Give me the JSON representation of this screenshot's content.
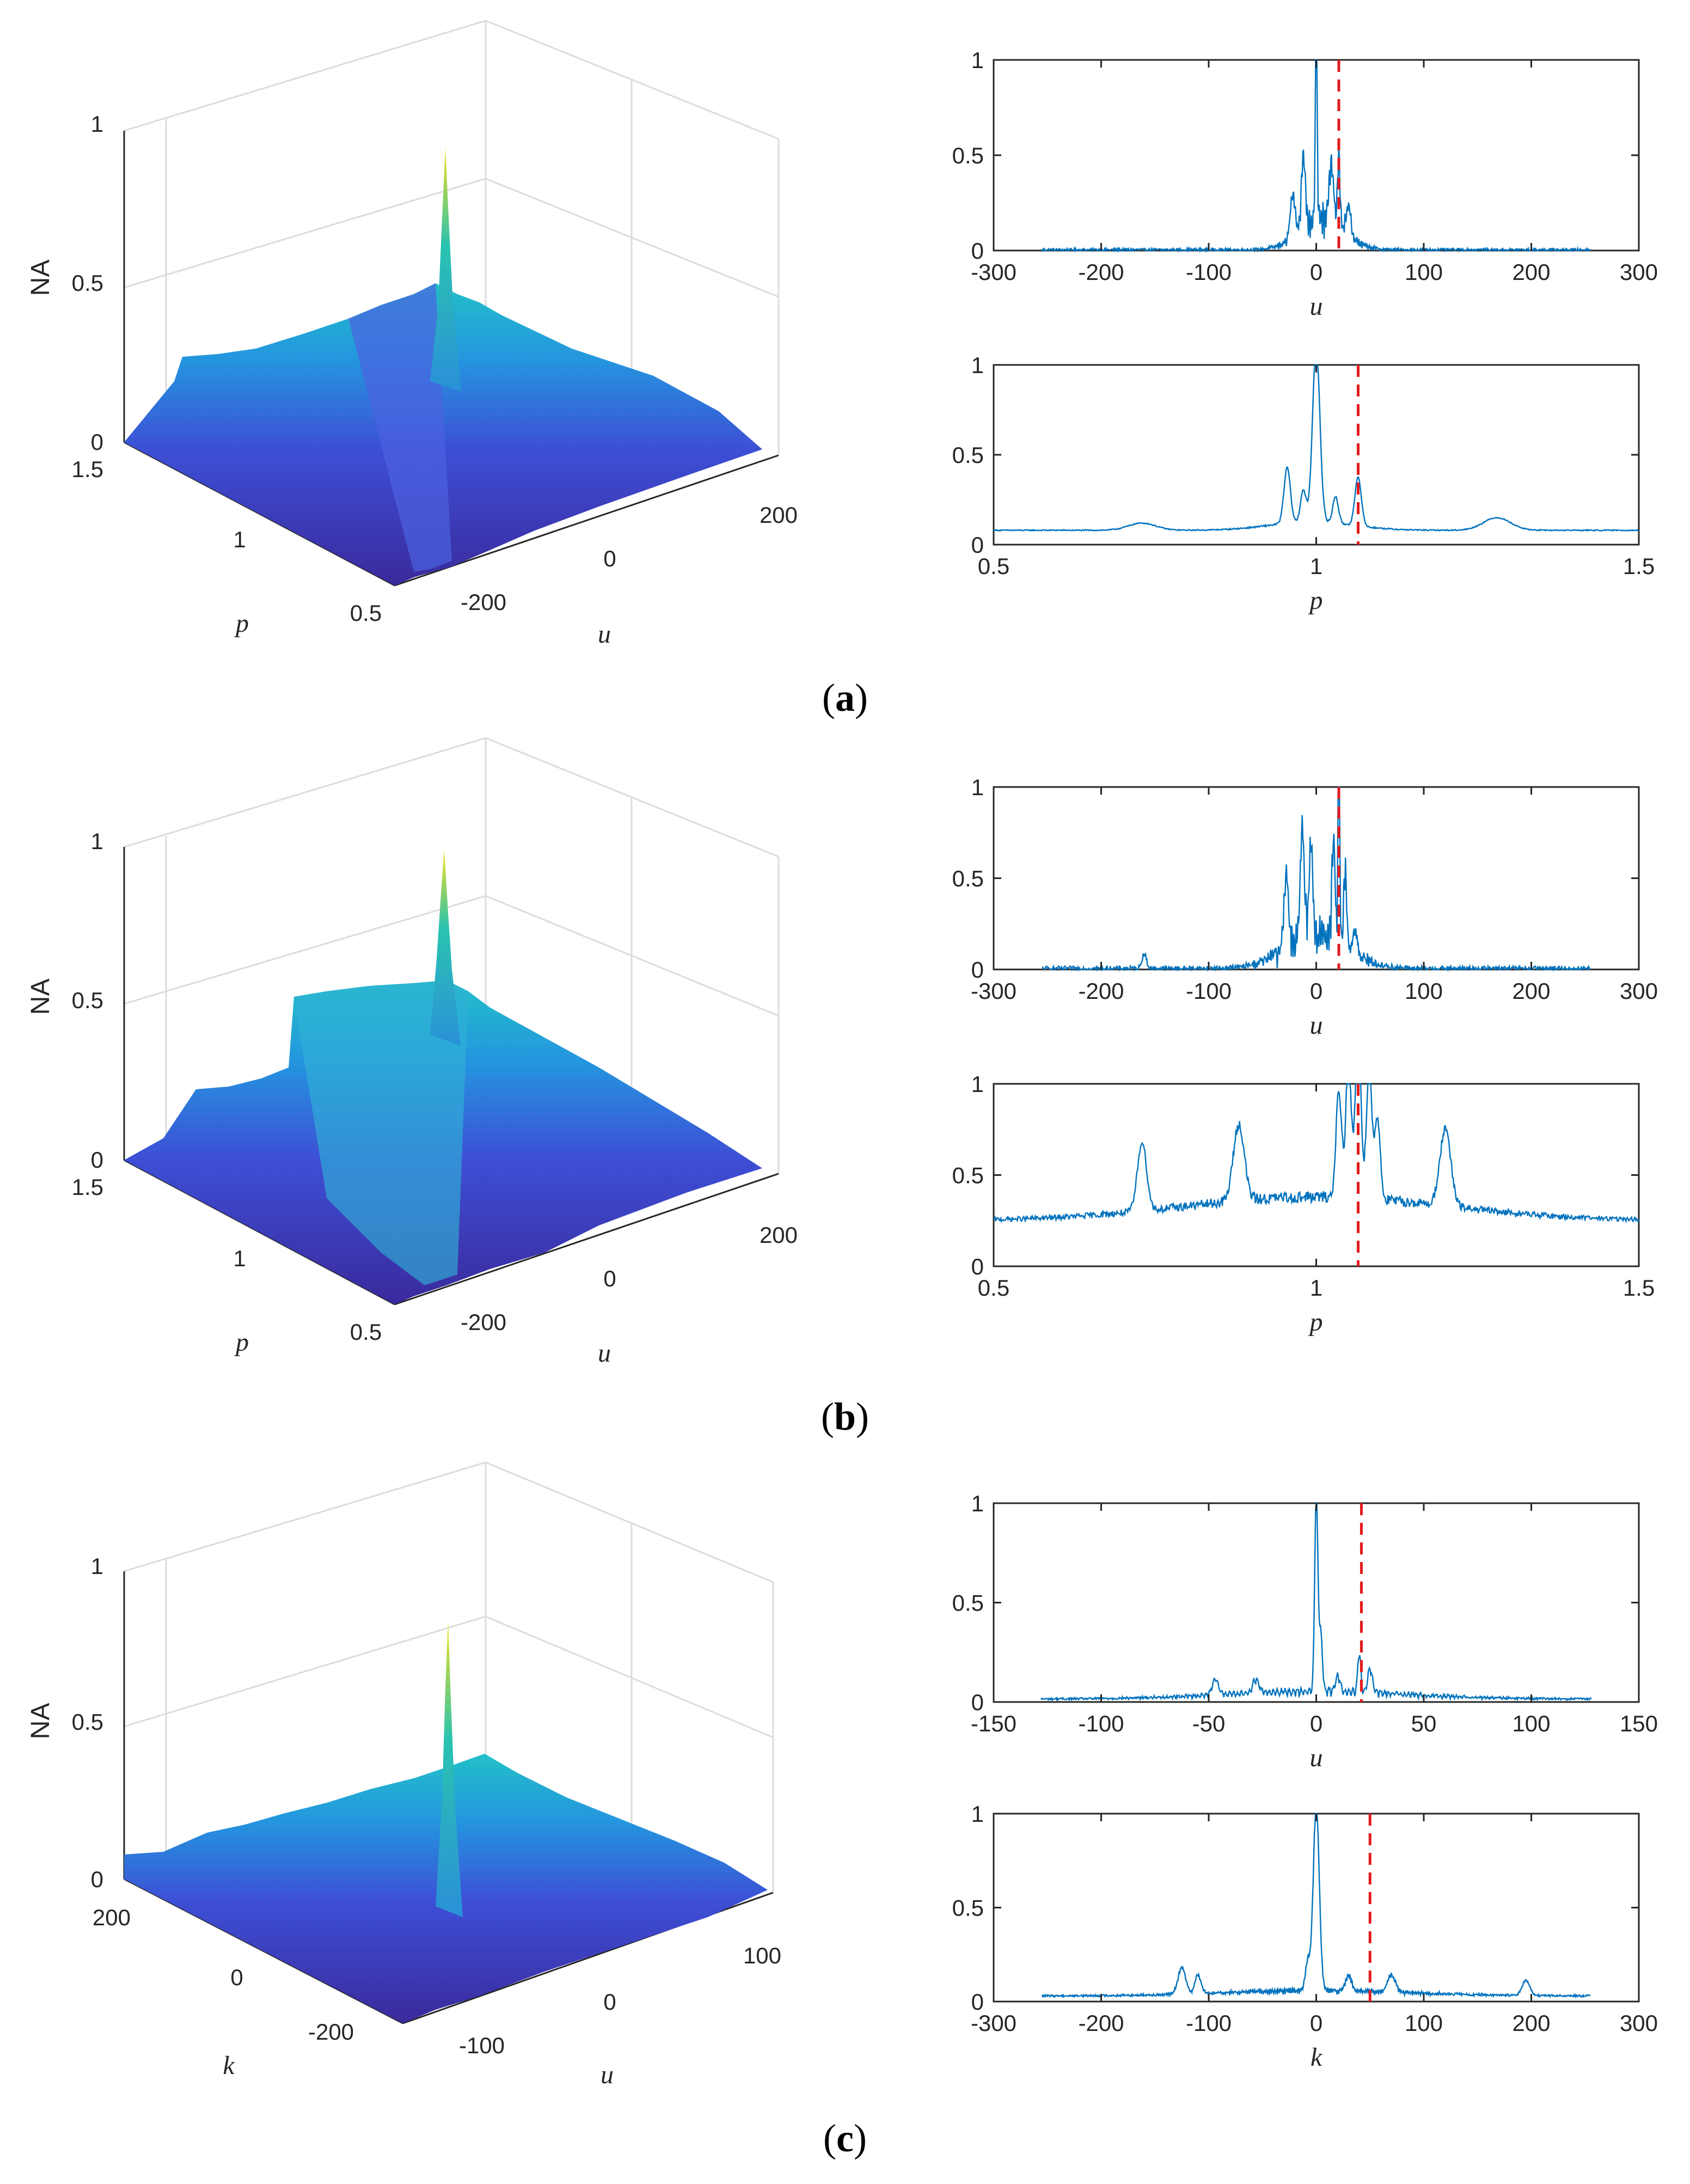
{
  "figure": {
    "panels": [
      {
        "caption_letter": "a",
        "surface": {
          "zlabel": "NA",
          "y_label": "p",
          "x_label": "u",
          "z_ticks": [
            "0",
            "0.5",
            "1"
          ],
          "y_ticks": [
            "1.5",
            "1",
            "0.5"
          ],
          "x_ticks": [
            "-200",
            "0",
            "200"
          ],
          "peak_value": 0.95
        },
        "plots": [
          {
            "xlabel": "u",
            "x_ticks": [
              "-300",
              "-200",
              "-100",
              "0",
              "100",
              "200",
              "300"
            ],
            "y_ticks": [
              "0",
              "0.5",
              "1"
            ]
          },
          {
            "xlabel": "p",
            "x_ticks": [
              "0.5",
              "1",
              "1.5"
            ],
            "y_ticks": [
              "0",
              "0.5",
              "1"
            ]
          }
        ]
      },
      {
        "caption_letter": "b",
        "surface": {
          "zlabel": "NA",
          "y_label": "p",
          "x_label": "u",
          "z_ticks": [
            "0",
            "0.5",
            "1"
          ],
          "y_ticks": [
            "1.5",
            "1",
            "0.5"
          ],
          "x_ticks": [
            "-200",
            "0",
            "200"
          ],
          "peak_value": 1.0
        },
        "plots": [
          {
            "xlabel": "u",
            "x_ticks": [
              "-300",
              "-200",
              "-100",
              "0",
              "100",
              "200",
              "300"
            ],
            "y_ticks": [
              "0",
              "0.5",
              "1"
            ]
          },
          {
            "xlabel": "p",
            "x_ticks": [
              "0.5",
              "1",
              "1.5"
            ],
            "y_ticks": [
              "0",
              "0.5",
              "1"
            ]
          }
        ]
      },
      {
        "caption_letter": "c",
        "surface": {
          "zlabel": "NA",
          "y_label": "k",
          "x_label": "u",
          "z_ticks": [
            "0",
            "0.5",
            "1"
          ],
          "y_ticks": [
            "200",
            "0",
            "-200"
          ],
          "x_ticks": [
            "-100",
            "0",
            "100"
          ],
          "peak_value": 0.93
        },
        "plots": [
          {
            "xlabel": "u",
            "x_ticks": [
              "-150",
              "-100",
              "-50",
              "0",
              "50",
              "100",
              "150"
            ],
            "y_ticks": [
              "0",
              "0.5",
              "1"
            ]
          },
          {
            "xlabel": "k",
            "x_ticks": [
              "-300",
              "-200",
              "-100",
              "0",
              "100",
              "200",
              "300"
            ],
            "y_ticks": [
              "0",
              "0.5",
              "1"
            ]
          }
        ]
      }
    ],
    "colors": {
      "line": "#0072BD",
      "marker": "#E31A1C",
      "surface_low": "#3E2AA0",
      "surface_mid": "#1AA8D8",
      "surface_high": "#F5E11A",
      "axis": "#262626",
      "grid": "#e2e2e2"
    }
  },
  "chart_data": [
    {
      "type": "line",
      "panel": "a-upper",
      "title": "",
      "xlabel": "u",
      "ylabel": "",
      "xlim": [
        -300,
        300
      ],
      "ylim": [
        0,
        1
      ],
      "domain": [
        -255,
        255
      ],
      "peaks": [
        [
          0,
          1.0,
          1.2
        ],
        [
          -12,
          0.38,
          2.5
        ],
        [
          -22,
          0.22,
          3
        ],
        [
          14,
          0.3,
          3
        ],
        [
          21,
          0.38,
          1.5
        ],
        [
          30,
          0.15,
          3
        ]
      ],
      "envelope": {
        "center": 5,
        "width": 28,
        "amp": 0.18
      },
      "baseline": 0.004,
      "noise": 0.05,
      "red_marker_x": 21
    },
    {
      "type": "line",
      "panel": "a-lower",
      "title": "",
      "xlabel": "p",
      "ylabel": "",
      "xlim": [
        0.5,
        1.5
      ],
      "ylim": [
        0,
        1
      ],
      "domain": [
        0.5,
        1.5
      ],
      "peaks": [
        [
          1.0,
          0.98,
          0.008
        ],
        [
          0.955,
          0.31,
          0.007
        ],
        [
          1.065,
          0.27,
          0.007
        ],
        [
          0.98,
          0.18,
          0.006
        ],
        [
          1.03,
          0.15,
          0.006
        ],
        [
          1.28,
          0.07,
          0.03
        ],
        [
          0.73,
          0.04,
          0.03
        ]
      ],
      "envelope": {
        "center": 1.0,
        "width": 0.09,
        "amp": 0.06
      },
      "baseline": 0.08,
      "noise": 0.02,
      "red_marker_x": 1.065
    },
    {
      "type": "line",
      "panel": "b-upper",
      "title": "",
      "xlabel": "u",
      "ylabel": "",
      "xlim": [
        -300,
        300
      ],
      "ylim": [
        0,
        1
      ],
      "domain": [
        -255,
        255
      ],
      "peaks": [
        [
          -13,
          0.58,
          2.5
        ],
        [
          -28,
          0.4,
          3
        ],
        [
          -5,
          0.45,
          2.5
        ],
        [
          16,
          0.55,
          2
        ],
        [
          21,
          0.98,
          1.2
        ],
        [
          27,
          0.42,
          2
        ],
        [
          36,
          0.12,
          3
        ],
        [
          -160,
          0.08,
          3
        ]
      ],
      "envelope": {
        "center": 0,
        "width": 40,
        "amp": 0.2
      },
      "baseline": 0.005,
      "noise": 0.09,
      "red_marker_x": 21
    },
    {
      "type": "line",
      "panel": "b-lower",
      "title": "",
      "xlabel": "p",
      "ylabel": "",
      "xlim": [
        0.5,
        1.5
      ],
      "ylim": [
        0,
        1
      ],
      "domain": [
        0.5,
        1.5
      ],
      "peaks": [
        [
          1.065,
          0.98,
          0.006
        ],
        [
          1.05,
          0.75,
          0.006
        ],
        [
          1.082,
          0.72,
          0.006
        ],
        [
          1.035,
          0.6,
          0.006
        ],
        [
          1.095,
          0.45,
          0.006
        ],
        [
          0.88,
          0.42,
          0.012
        ],
        [
          1.2,
          0.42,
          0.012
        ],
        [
          0.73,
          0.38,
          0.01
        ]
      ],
      "envelope": {
        "center": 1.0,
        "width": 0.3,
        "amp": 0.1
      },
      "baseline": 0.25,
      "noise": 0.07,
      "red_marker_x": 1.065
    },
    {
      "type": "line",
      "panel": "c-upper",
      "title": "",
      "xlabel": "u",
      "ylabel": "",
      "xlim": [
        -150,
        150
      ],
      "ylim": [
        0,
        1
      ],
      "domain": [
        -128,
        128
      ],
      "peaks": [
        [
          0,
          1.0,
          1.0
        ],
        [
          -47,
          0.08,
          2
        ],
        [
          -28,
          0.07,
          2
        ],
        [
          10,
          0.08,
          1.5
        ],
        [
          20,
          0.2,
          1
        ],
        [
          25,
          0.12,
          1.5
        ],
        [
          2,
          0.3,
          1.2
        ]
      ],
      "envelope": {
        "center": 0,
        "width": 60,
        "amp": 0.04
      },
      "baseline": 0.015,
      "noise": 0.035,
      "red_marker_x": 21
    },
    {
      "type": "line",
      "panel": "c-lower",
      "title": "",
      "xlabel": "k",
      "ylabel": "",
      "xlim": [
        -300,
        300
      ],
      "ylim": [
        0,
        1
      ],
      "domain": [
        -255,
        255
      ],
      "peaks": [
        [
          0,
          0.98,
          4
        ],
        [
          -125,
          0.14,
          5
        ],
        [
          -110,
          0.1,
          4
        ],
        [
          -8,
          0.15,
          3
        ],
        [
          30,
          0.08,
          4
        ],
        [
          195,
          0.08,
          5
        ],
        [
          70,
          0.09,
          5
        ]
      ],
      "envelope": {
        "center": 0,
        "width": 120,
        "amp": 0.03
      },
      "baseline": 0.03,
      "noise": 0.035,
      "red_marker_x": 50
    }
  ]
}
